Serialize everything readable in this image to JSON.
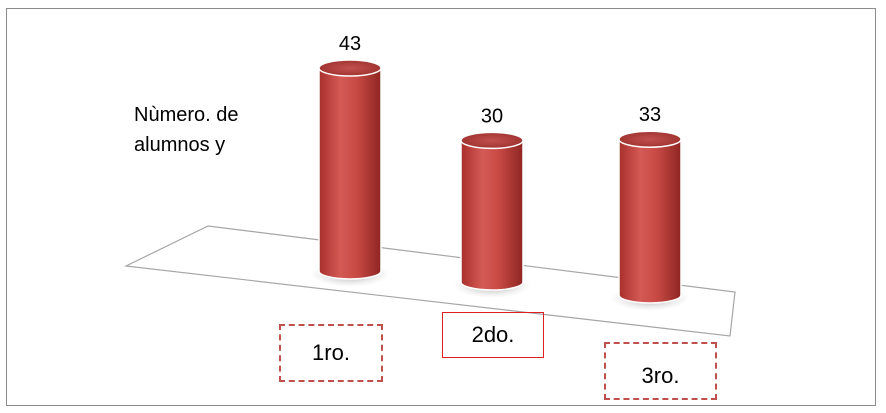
{
  "chart_data": {
    "type": "bar",
    "style": "3d-cylinder",
    "categories": [
      "1ro.",
      "2do.",
      "3ro."
    ],
    "values": [
      43,
      30,
      33
    ],
    "ylabel_lines": [
      "Nùmero. de",
      "alumnos y"
    ],
    "bar_color": "#c0504d",
    "grid": false,
    "legend": "none"
  }
}
